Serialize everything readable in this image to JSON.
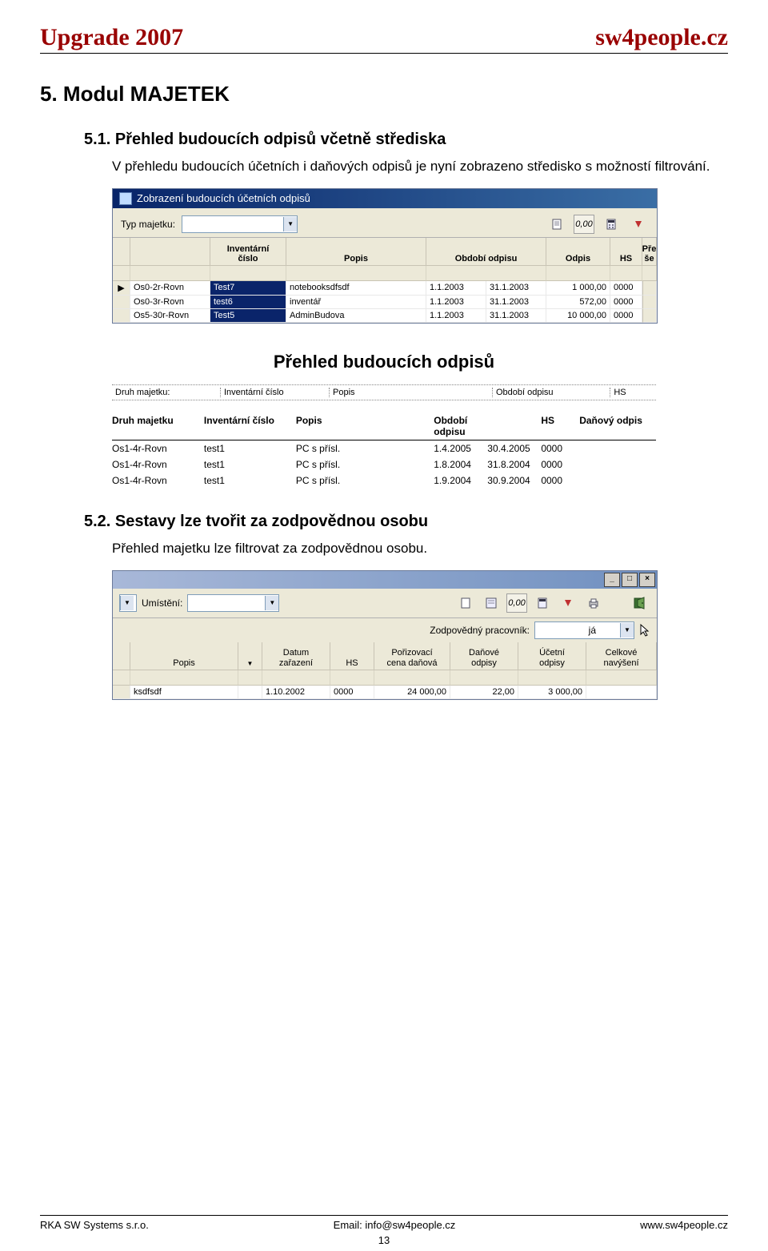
{
  "header": {
    "left": "Upgrade 2007",
    "right": "sw4people.cz"
  },
  "section": {
    "title": "5. Modul MAJETEK"
  },
  "sub1": {
    "title": "5.1.  Přehled budoucích odpisů včetně střediska",
    "text": "V přehledu budoucích účetních i daňových odpisů je nyní zobrazeno středisko s možností filtrování."
  },
  "shot1": {
    "title": "Zobrazení budoucích účetních odpisů",
    "typ_label": "Typ majetku:",
    "calc_value": "0,00",
    "columns": [
      "",
      "Inventární\nčíslo",
      "Popis",
      "Období odpisu",
      "Odpis",
      "HS",
      "Pře\nše"
    ],
    "rows": [
      {
        "mark": "▶",
        "col1": "Os0-2r-Rovn",
        "col2": "Test7",
        "popis": "notebooksdfsdf",
        "d1": "1.1.2003",
        "d2": "31.1.2003",
        "odpis": "1 000,00",
        "hs": "0000"
      },
      {
        "mark": "",
        "col1": "Os0-3r-Rovn",
        "col2": "test6",
        "popis": "inventář",
        "d1": "1.1.2003",
        "d2": "31.1.2003",
        "odpis": "572,00",
        "hs": "0000"
      },
      {
        "mark": "",
        "col1": "Os5-30r-Rovn",
        "col2": "Test5",
        "popis": "AdminBudova",
        "d1": "1.1.2003",
        "d2": "31.1.2003",
        "odpis": "10 000,00",
        "hs": "0000"
      }
    ]
  },
  "report": {
    "title": "Přehled budoucích odpisů",
    "filter_labels": [
      "Druh majetku:",
      "Inventární číslo",
      "Popis",
      "Období odpisu",
      "HS"
    ],
    "columns": [
      "Druh majetku",
      "Inventární číslo",
      "Popis",
      "Období odpisu",
      "",
      "HS",
      "Daňový odpis"
    ],
    "rows": [
      [
        "Os1-4r-Rovn",
        "test1",
        "PC s přísl.",
        "1.4.2005",
        "30.4.2005",
        "0000",
        ""
      ],
      [
        "Os1-4r-Rovn",
        "test1",
        "PC s přísl.",
        "1.8.2004",
        "31.8.2004",
        "0000",
        ""
      ],
      [
        "Os1-4r-Rovn",
        "test1",
        "PC s přísl.",
        "1.9.2004",
        "30.9.2004",
        "0000",
        ""
      ]
    ]
  },
  "sub2": {
    "title": "5.2.  Sestavy lze tvořit za zodpovědnou osobu",
    "text": "Přehled majetku lze filtrovat za zodpovědnou osobu."
  },
  "shot2": {
    "umisteni_label": "Umístění:",
    "calc_value": "0,00",
    "zodp_label": "Zodpovědný pracovník:",
    "zodp_value": "já",
    "columns": [
      "Popis",
      "",
      "Datum\nzařazení",
      "HS",
      "Pořizovací\ncena daňová",
      "Daňové\nodpisy",
      "Účetní\nodpisy",
      "Celkové\nnavýšení"
    ],
    "row": {
      "popis": "ksdfsdf",
      "datum": "1.10.2002",
      "hs": "0000",
      "cena": "24 000,00",
      "dan": "22,00",
      "ucet": "3 000,00"
    }
  },
  "footer": {
    "left": "RKA SW Systems s.r.o.",
    "mid": "Email: info@sw4people.cz",
    "right": "www.sw4people.cz",
    "page": "13"
  },
  "colors": {
    "brand": "#990000",
    "titlebar_from": "#082468",
    "titlebar_to": "#3a6ea5",
    "win_bg": "#ece9d8",
    "sel_bg": "#0a246a"
  }
}
